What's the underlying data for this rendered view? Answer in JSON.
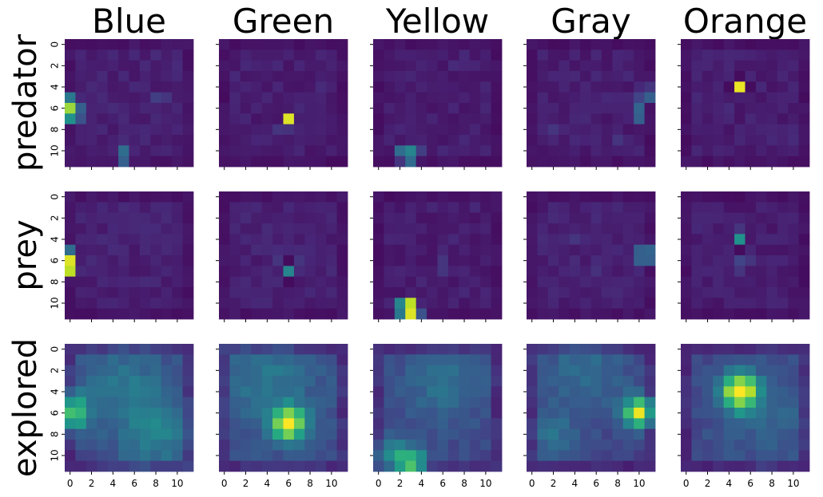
{
  "chart_data": {
    "type": "heatmap",
    "colormap": "viridis",
    "grid": false,
    "value_range": [
      0,
      1
    ],
    "columns": [
      "Blue",
      "Green",
      "Yellow",
      "Gray",
      "Orange"
    ],
    "rows": [
      "predator",
      "prey",
      "explored"
    ],
    "x_ticks": [
      "0",
      "2",
      "4",
      "6",
      "8",
      "10"
    ],
    "y_ticks": [
      "0",
      "2",
      "4",
      "6",
      "8",
      "10"
    ],
    "grid_size": [
      12,
      12
    ],
    "panels": [
      {
        "row": "predator",
        "column": "Blue",
        "background": 0.06,
        "hotspots": [
          {
            "r": 6,
            "c": 0,
            "v": 0.85
          },
          {
            "r": 5,
            "c": 0,
            "v": 0.4
          },
          {
            "r": 7,
            "c": 0,
            "v": 0.5
          },
          {
            "r": 6,
            "c": 1,
            "v": 0.3
          },
          {
            "r": 7,
            "c": 1,
            "v": 0.25
          },
          {
            "r": 10,
            "c": 5,
            "v": 0.35
          },
          {
            "r": 11,
            "c": 5,
            "v": 0.3
          },
          {
            "r": 5,
            "c": 8,
            "v": 0.18
          },
          {
            "r": 5,
            "c": 9,
            "v": 0.15
          }
        ]
      },
      {
        "row": "predator",
        "column": "Green",
        "background": 0.05,
        "hotspots": [
          {
            "r": 7,
            "c": 6,
            "v": 0.95
          },
          {
            "r": 8,
            "c": 5,
            "v": 0.15
          },
          {
            "r": 8,
            "c": 6,
            "v": 0.14
          },
          {
            "r": 4,
            "c": 9,
            "v": 0.12
          }
        ]
      },
      {
        "row": "predator",
        "column": "Yellow",
        "background": 0.05,
        "hotspots": [
          {
            "r": 10,
            "c": 2,
            "v": 0.35
          },
          {
            "r": 10,
            "c": 3,
            "v": 0.45
          },
          {
            "r": 11,
            "c": 3,
            "v": 0.35
          },
          {
            "r": 11,
            "c": 2,
            "v": 0.15
          },
          {
            "r": 10,
            "c": 4,
            "v": 0.18
          },
          {
            "r": 2,
            "c": 7,
            "v": 0.12
          }
        ]
      },
      {
        "row": "predator",
        "column": "Gray",
        "background": 0.05,
        "hotspots": [
          {
            "r": 5,
            "c": 11,
            "v": 0.3
          },
          {
            "r": 6,
            "c": 10,
            "v": 0.32
          },
          {
            "r": 7,
            "c": 10,
            "v": 0.3
          },
          {
            "r": 5,
            "c": 10,
            "v": 0.2
          },
          {
            "r": 8,
            "c": 2,
            "v": 0.15
          },
          {
            "r": 9,
            "c": 8,
            "v": 0.15
          },
          {
            "r": 4,
            "c": 11,
            "v": 0.15
          }
        ]
      },
      {
        "row": "predator",
        "column": "Orange",
        "background": 0.05,
        "hotspots": [
          {
            "r": 4,
            "c": 5,
            "v": 0.97
          },
          {
            "r": 4,
            "c": 4,
            "v": 0.03
          },
          {
            "r": 4,
            "c": 6,
            "v": 0.03
          },
          {
            "r": 3,
            "c": 5,
            "v": 0.03
          },
          {
            "r": 6,
            "c": 4,
            "v": 0.12
          },
          {
            "r": 9,
            "c": 10,
            "v": 0.12
          }
        ]
      },
      {
        "row": "prey",
        "column": "Blue",
        "background": 0.06,
        "hotspots": [
          {
            "r": 6,
            "c": 0,
            "v": 0.95
          },
          {
            "r": 7,
            "c": 0,
            "v": 0.9
          },
          {
            "r": 5,
            "c": 0,
            "v": 0.35
          },
          {
            "r": 5,
            "c": 4,
            "v": 0.12
          },
          {
            "r": 10,
            "c": 3,
            "v": 0.1
          }
        ]
      },
      {
        "row": "prey",
        "column": "Green",
        "background": 0.06,
        "hotspots": [
          {
            "r": 7,
            "c": 6,
            "v": 0.45
          },
          {
            "r": 6,
            "c": 6,
            "v": 0.03
          },
          {
            "r": 8,
            "c": 6,
            "v": 0.03
          },
          {
            "r": 6,
            "c": 5,
            "v": 0.15
          },
          {
            "r": 6,
            "c": 7,
            "v": 0.15
          }
        ]
      },
      {
        "row": "prey",
        "column": "Yellow",
        "background": 0.05,
        "hotspots": [
          {
            "r": 10,
            "c": 3,
            "v": 0.9
          },
          {
            "r": 11,
            "c": 3,
            "v": 0.95
          },
          {
            "r": 10,
            "c": 2,
            "v": 0.45
          },
          {
            "r": 11,
            "c": 2,
            "v": 0.4
          },
          {
            "r": 11,
            "c": 4,
            "v": 0.25
          },
          {
            "r": 6,
            "c": 6,
            "v": 0.15
          },
          {
            "r": 7,
            "c": 6,
            "v": 0.15
          }
        ]
      },
      {
        "row": "prey",
        "column": "Gray",
        "background": 0.06,
        "hotspots": [
          {
            "r": 5,
            "c": 10,
            "v": 0.3
          },
          {
            "r": 5,
            "c": 11,
            "v": 0.32
          },
          {
            "r": 6,
            "c": 10,
            "v": 0.3
          },
          {
            "r": 6,
            "c": 11,
            "v": 0.3
          },
          {
            "r": 4,
            "c": 4,
            "v": 0.15
          },
          {
            "r": 7,
            "c": 6,
            "v": 0.14
          }
        ]
      },
      {
        "row": "prey",
        "column": "Orange",
        "background": 0.05,
        "hotspots": [
          {
            "r": 4,
            "c": 5,
            "v": 0.5
          },
          {
            "r": 3,
            "c": 5,
            "v": 0.15
          },
          {
            "r": 5,
            "c": 5,
            "v": 0.03
          },
          {
            "r": 6,
            "c": 5,
            "v": 0.2
          },
          {
            "r": 6,
            "c": 6,
            "v": 0.15
          },
          {
            "r": 7,
            "c": 5,
            "v": 0.15
          }
        ]
      },
      {
        "row": "explored",
        "column": "Blue",
        "peaks": [
          {
            "r": 6,
            "c": 0,
            "v": 0.55,
            "s": 1.2
          },
          {
            "r": 8,
            "c": 8,
            "v": 0.2,
            "s": 2.5
          },
          {
            "r": 3,
            "c": 5,
            "v": 0.15,
            "s": 3
          }
        ],
        "background": 0.22
      },
      {
        "row": "explored",
        "column": "Green",
        "peaks": [
          {
            "r": 7,
            "c": 6,
            "v": 0.75,
            "s": 1.1
          },
          {
            "r": 3,
            "c": 4,
            "v": 0.15,
            "s": 3
          }
        ],
        "background": 0.24
      },
      {
        "row": "explored",
        "column": "Yellow",
        "peaks": [
          {
            "r": 11,
            "c": 3,
            "v": 0.5,
            "s": 1.1
          },
          {
            "r": 10,
            "c": 1,
            "v": 0.2,
            "s": 1.5
          },
          {
            "r": 3,
            "c": 6,
            "v": 0.15,
            "s": 2.5
          }
        ],
        "background": 0.22
      },
      {
        "row": "explored",
        "column": "Gray",
        "peaks": [
          {
            "r": 6,
            "c": 10,
            "v": 0.75,
            "s": 1.0
          },
          {
            "r": 2,
            "c": 5,
            "v": 0.15,
            "s": 3
          },
          {
            "r": 8,
            "c": 2,
            "v": 0.15,
            "s": 1.5
          }
        ],
        "background": 0.2
      },
      {
        "row": "explored",
        "column": "Orange",
        "peaks": [
          {
            "r": 4,
            "c": 5,
            "v": 0.8,
            "s": 1.2
          },
          {
            "r": 6,
            "c": 8,
            "v": 0.1,
            "s": 3
          }
        ],
        "background": 0.22
      }
    ]
  }
}
